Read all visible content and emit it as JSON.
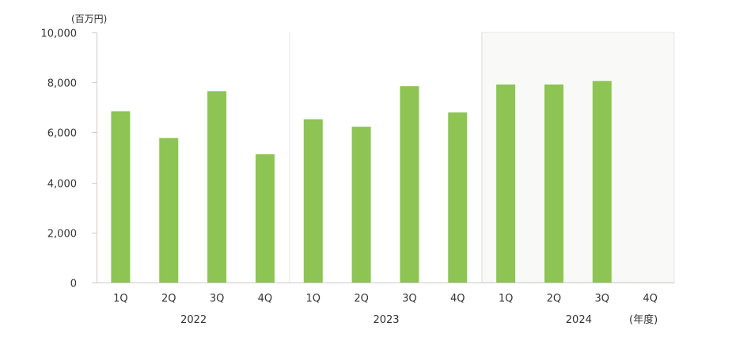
{
  "chart_data": {
    "type": "bar",
    "y_unit": "(百万円)",
    "x_unit": "(年度)",
    "ylim": [
      0,
      10000
    ],
    "y_ticks": [
      "0",
      "2,000",
      "4,000",
      "6,000",
      "8,000",
      "10,000"
    ],
    "y_tick_values": [
      0,
      2000,
      4000,
      6000,
      8000,
      10000
    ],
    "grid": false,
    "groups": [
      {
        "year": "2022",
        "quarters": [
          "1Q",
          "2Q",
          "3Q",
          "4Q"
        ],
        "values": [
          6850,
          5780,
          7650,
          5130
        ]
      },
      {
        "year": "2023",
        "quarters": [
          "1Q",
          "2Q",
          "3Q",
          "4Q"
        ],
        "values": [
          6530,
          6230,
          7850,
          6800
        ]
      },
      {
        "year": "2024",
        "quarters": [
          "1Q",
          "2Q",
          "3Q",
          "4Q"
        ],
        "values": [
          7920,
          7920,
          8060,
          null
        ]
      }
    ],
    "highlight_group": "2024",
    "colors": {
      "bar": "#8dc453",
      "axis": "#cccccc",
      "divider": "#e6e6e6",
      "highlight_bg": "#f9f9f7",
      "text": "#333333"
    }
  }
}
